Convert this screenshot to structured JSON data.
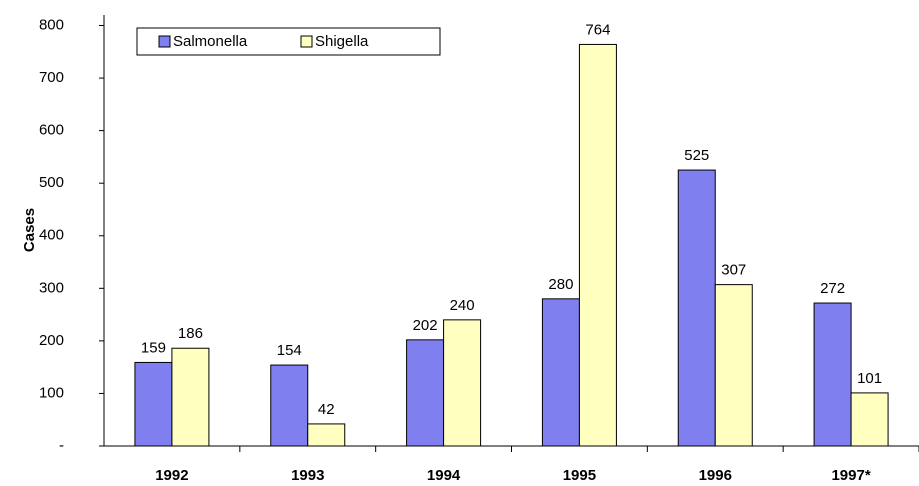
{
  "chart_data": {
    "type": "bar",
    "categories": [
      "1992",
      "1993",
      "1994",
      "1995",
      "1996",
      "1997*"
    ],
    "series": [
      {
        "name": "Salmonella",
        "color": "#7f7fef",
        "values": [
          159,
          154,
          202,
          280,
          525,
          272
        ]
      },
      {
        "name": "Shigella",
        "color": "#ffffc0",
        "values": [
          186,
          42,
          240,
          764,
          307,
          101
        ]
      }
    ],
    "y_label": "Cases",
    "ylim": [
      0,
      820
    ],
    "yticks": [
      {
        "value": 0,
        "label": "-"
      },
      100,
      200,
      300,
      400,
      500,
      600,
      700,
      800
    ],
    "grid": false,
    "legend": "top-left"
  }
}
